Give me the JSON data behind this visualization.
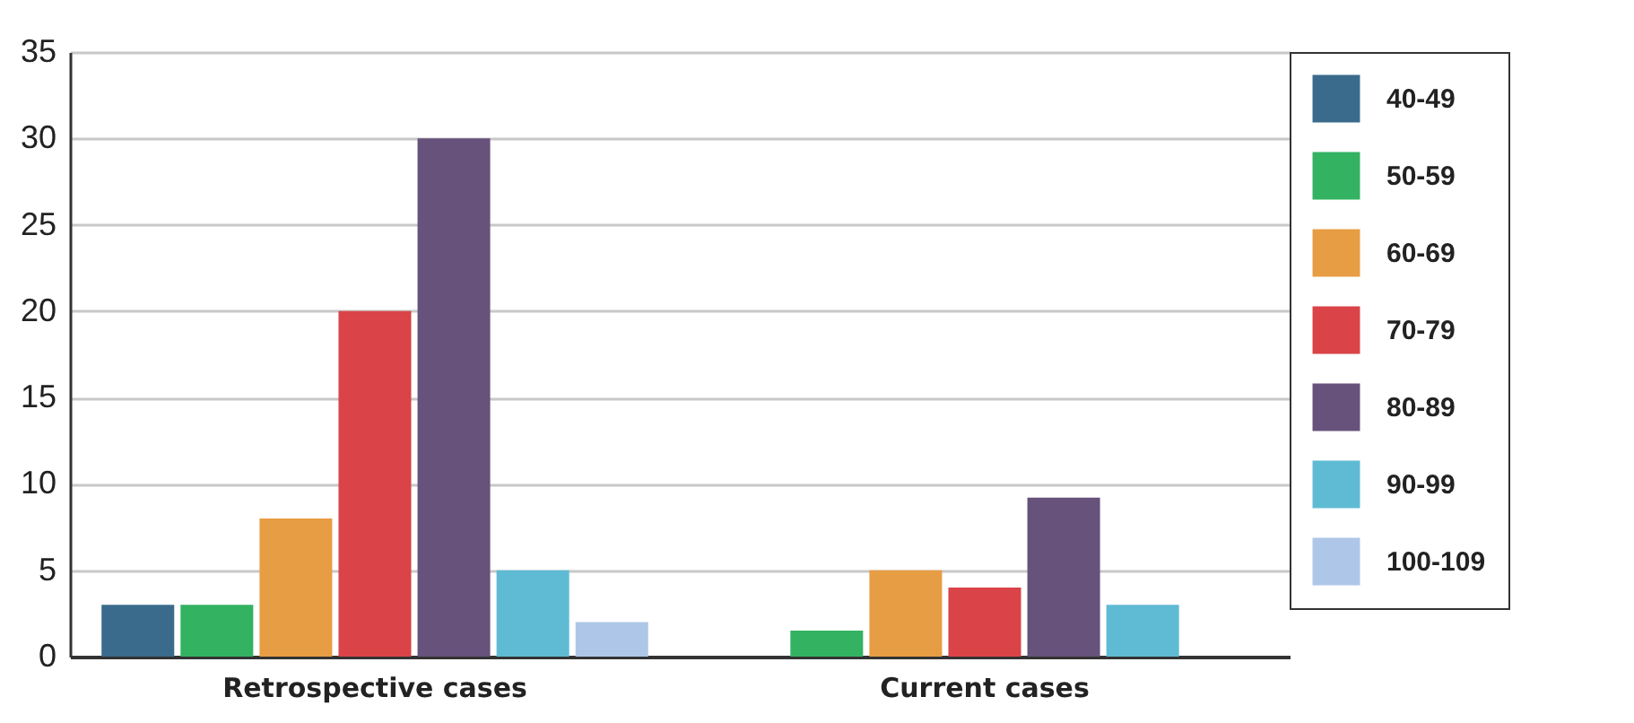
{
  "chart_data": {
    "type": "bar",
    "categories": [
      "Retrospective cases",
      "Current cases"
    ],
    "series": [
      {
        "name": "40-49",
        "color": "#3a6b8c",
        "values": [
          3,
          null
        ]
      },
      {
        "name": "50-59",
        "color": "#33b262",
        "values": [
          3,
          1.5
        ]
      },
      {
        "name": "60-69",
        "color": "#e79d43",
        "values": [
          8,
          5
        ]
      },
      {
        "name": "70-79",
        "color": "#da4347",
        "values": [
          20,
          4
        ]
      },
      {
        "name": "80-89",
        "color": "#67527b",
        "values": [
          30,
          9.2
        ]
      },
      {
        "name": "90-99",
        "color": "#5fbbd3",
        "values": [
          5,
          3
        ]
      },
      {
        "name": "100-109",
        "color": "#aec7e8",
        "values": [
          2,
          null
        ]
      }
    ],
    "ylim": [
      0,
      35
    ],
    "yticks": [
      0,
      5,
      10,
      15,
      20,
      25,
      30,
      35
    ],
    "grid": "y",
    "legend": "right"
  }
}
